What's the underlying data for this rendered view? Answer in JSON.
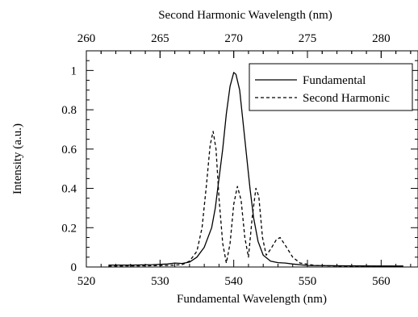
{
  "chart_data": {
    "type": "line",
    "top_axis": {
      "label": "Second Harmonic Wavelength (nm)",
      "range": [
        260,
        282.5
      ],
      "ticks": [
        260,
        265,
        270,
        275,
        280
      ],
      "tick_labels": [
        "260",
        "265",
        "270",
        "275",
        "280"
      ],
      "minor_step": 1
    },
    "x_axis": {
      "label": "Fundamental Wavelength (nm)",
      "range": [
        520,
        565
      ],
      "ticks": [
        520,
        530,
        540,
        550,
        560
      ],
      "tick_labels": [
        "520",
        "530",
        "540",
        "550",
        "560"
      ],
      "minor_step": 2
    },
    "y_axis": {
      "label": "Intensity (a.u.)",
      "range": [
        0,
        1.1
      ],
      "ticks": [
        0,
        0.2,
        0.4,
        0.6,
        0.8,
        1
      ],
      "tick_labels": [
        "0",
        "0.2",
        "0.4",
        "0.6",
        "0.8",
        "1"
      ],
      "minor_step": 0.05
    },
    "grid": false,
    "legend": {
      "placement": "top-right"
    },
    "series": [
      {
        "name": "Fundamental",
        "style": "solid",
        "color": "#000000",
        "points": [
          [
            523,
            0.01
          ],
          [
            526,
            0.01
          ],
          [
            529,
            0.012
          ],
          [
            531,
            0.015
          ],
          [
            532,
            0.02
          ],
          [
            533,
            0.018
          ],
          [
            534,
            0.025
          ],
          [
            535,
            0.05
          ],
          [
            536,
            0.1
          ],
          [
            537,
            0.2
          ],
          [
            537.5,
            0.3
          ],
          [
            538,
            0.45
          ],
          [
            538.5,
            0.6
          ],
          [
            539,
            0.78
          ],
          [
            539.5,
            0.92
          ],
          [
            540,
            0.99
          ],
          [
            540.3,
            0.98
          ],
          [
            540.8,
            0.9
          ],
          [
            541.2,
            0.76
          ],
          [
            541.7,
            0.58
          ],
          [
            542.2,
            0.4
          ],
          [
            542.7,
            0.25
          ],
          [
            543.3,
            0.13
          ],
          [
            544,
            0.06
          ],
          [
            545,
            0.03
          ],
          [
            546,
            0.022
          ],
          [
            547,
            0.02
          ],
          [
            548,
            0.015
          ],
          [
            550,
            0.008
          ],
          [
            555,
            0.006
          ],
          [
            560,
            0.005
          ],
          [
            563,
            0.005
          ]
        ]
      },
      {
        "name": "Second Harmonic",
        "style": "dashed",
        "color": "#000000",
        "points": [
          [
            523,
            0.005
          ],
          [
            528,
            0.006
          ],
          [
            531,
            0.008
          ],
          [
            533,
            0.012
          ],
          [
            534,
            0.03
          ],
          [
            535,
            0.08
          ],
          [
            535.7,
            0.2
          ],
          [
            536.3,
            0.42
          ],
          [
            536.8,
            0.62
          ],
          [
            537.2,
            0.69
          ],
          [
            537.6,
            0.6
          ],
          [
            538,
            0.35
          ],
          [
            538.5,
            0.12
          ],
          [
            539,
            0.02
          ],
          [
            539.5,
            0.12
          ],
          [
            540,
            0.32
          ],
          [
            540.5,
            0.41
          ],
          [
            541,
            0.34
          ],
          [
            541.5,
            0.15
          ],
          [
            542,
            0.05
          ],
          [
            542.5,
            0.25
          ],
          [
            543,
            0.4
          ],
          [
            543.4,
            0.36
          ],
          [
            543.9,
            0.15
          ],
          [
            544.4,
            0.06
          ],
          [
            545,
            0.09
          ],
          [
            545.8,
            0.14
          ],
          [
            546.3,
            0.15
          ],
          [
            547,
            0.11
          ],
          [
            548,
            0.05
          ],
          [
            549,
            0.02
          ],
          [
            551,
            0.008
          ],
          [
            555,
            0.004
          ],
          [
            560,
            0.004
          ],
          [
            563,
            0.004
          ]
        ]
      }
    ]
  }
}
